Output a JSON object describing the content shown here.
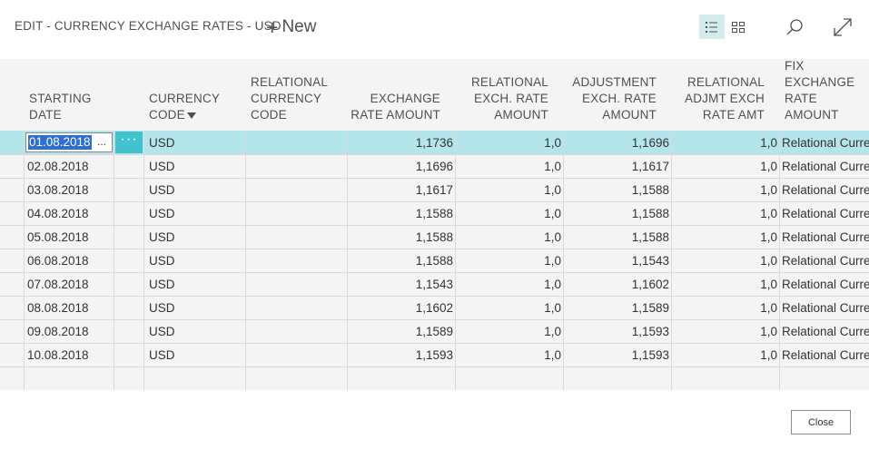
{
  "header": {
    "title": "EDIT - CURRENCY EXCHANGE RATES - USD",
    "new_label": "New",
    "icons": [
      "list-view-icon",
      "tile-view-icon",
      "search-icon",
      "expand-icon"
    ]
  },
  "columns": [
    {
      "key": "starting_date",
      "label": "STARTING DATE"
    },
    {
      "key": "currency_code",
      "label": "CURRENCY CODE",
      "filtered": true
    },
    {
      "key": "relational_currency_code",
      "label": "RELATIONAL CURRENCY CODE"
    },
    {
      "key": "exchange_rate_amount",
      "label": "EXCHANGE RATE AMOUNT"
    },
    {
      "key": "relational_exch_rate_amount",
      "label": "RELATIONAL EXCH. RATE AMOUNT"
    },
    {
      "key": "adjustment_exch_rate_amount",
      "label": "ADJUSTMENT EXCH. RATE AMOUNT"
    },
    {
      "key": "relational_adjmt_exch_rate_amt",
      "label": "RELATIONAL ADJMT EXCH RATE AMT"
    },
    {
      "key": "fix_exchange_rate_amount",
      "label": "FIX EXCHANGE RATE AMOUNT"
    }
  ],
  "header_lines": {
    "starting_date": [
      "STARTING",
      "DATE"
    ],
    "currency_code": [
      "CURRENCY",
      "CODE"
    ],
    "relational_currency_code": [
      "RELATIONAL",
      "CURRENCY",
      "CODE"
    ],
    "exchange_rate_amount": [
      "EXCHANGE",
      "RATE AMOUNT"
    ],
    "relational_exch_rate_amount": [
      "RELATIONAL",
      "EXCH. RATE",
      "AMOUNT"
    ],
    "adjustment_exch_rate_amount": [
      "ADJUSTMENT",
      "EXCH. RATE",
      "AMOUNT"
    ],
    "relational_adjmt_exch_rate_amt": [
      "RELATIONAL",
      "ADJMT EXCH",
      "RATE AMT"
    ],
    "fix_exchange_rate_amount": [
      "FIX",
      "EXCHANGE",
      "RATE",
      "AMOUNT"
    ]
  },
  "rows": [
    {
      "starting_date": "01.08.2018",
      "currency_code": "USD",
      "relational_currency_code": "",
      "exchange_rate_amount": "1,1736",
      "relational_exch_rate_amount": "1,0",
      "adjustment_exch_rate_amount": "1,1696",
      "relational_adjmt_exch_rate_amt": "1,0",
      "fix_exchange_rate_amount": "Relational Curre",
      "selected": true
    },
    {
      "starting_date": "02.08.2018",
      "currency_code": "USD",
      "relational_currency_code": "",
      "exchange_rate_amount": "1,1696",
      "relational_exch_rate_amount": "1,0",
      "adjustment_exch_rate_amount": "1,1617",
      "relational_adjmt_exch_rate_amt": "1,0",
      "fix_exchange_rate_amount": "Relational Curre"
    },
    {
      "starting_date": "03.08.2018",
      "currency_code": "USD",
      "relational_currency_code": "",
      "exchange_rate_amount": "1,1617",
      "relational_exch_rate_amount": "1,0",
      "adjustment_exch_rate_amount": "1,1588",
      "relational_adjmt_exch_rate_amt": "1,0",
      "fix_exchange_rate_amount": "Relational Curre"
    },
    {
      "starting_date": "04.08.2018",
      "currency_code": "USD",
      "relational_currency_code": "",
      "exchange_rate_amount": "1,1588",
      "relational_exch_rate_amount": "1,0",
      "adjustment_exch_rate_amount": "1,1588",
      "relational_adjmt_exch_rate_amt": "1,0",
      "fix_exchange_rate_amount": "Relational Curre"
    },
    {
      "starting_date": "05.08.2018",
      "currency_code": "USD",
      "relational_currency_code": "",
      "exchange_rate_amount": "1,1588",
      "relational_exch_rate_amount": "1,0",
      "adjustment_exch_rate_amount": "1,1588",
      "relational_adjmt_exch_rate_amt": "1,0",
      "fix_exchange_rate_amount": "Relational Curre"
    },
    {
      "starting_date": "06.08.2018",
      "currency_code": "USD",
      "relational_currency_code": "",
      "exchange_rate_amount": "1,1588",
      "relational_exch_rate_amount": "1,0",
      "adjustment_exch_rate_amount": "1,1543",
      "relational_adjmt_exch_rate_amt": "1,0",
      "fix_exchange_rate_amount": "Relational Curre"
    },
    {
      "starting_date": "07.08.2018",
      "currency_code": "USD",
      "relational_currency_code": "",
      "exchange_rate_amount": "1,1543",
      "relational_exch_rate_amount": "1,0",
      "adjustment_exch_rate_amount": "1,1602",
      "relational_adjmt_exch_rate_amt": "1,0",
      "fix_exchange_rate_amount": "Relational Curre"
    },
    {
      "starting_date": "08.08.2018",
      "currency_code": "USD",
      "relational_currency_code": "",
      "exchange_rate_amount": "1,1602",
      "relational_exch_rate_amount": "1,0",
      "adjustment_exch_rate_amount": "1,1589",
      "relational_adjmt_exch_rate_amt": "1,0",
      "fix_exchange_rate_amount": "Relational Curre"
    },
    {
      "starting_date": "09.08.2018",
      "currency_code": "USD",
      "relational_currency_code": "",
      "exchange_rate_amount": "1,1589",
      "relational_exch_rate_amount": "1,0",
      "adjustment_exch_rate_amount": "1,1593",
      "relational_adjmt_exch_rate_amt": "1,0",
      "fix_exchange_rate_amount": "Relational Curre"
    },
    {
      "starting_date": "10.08.2018",
      "currency_code": "USD",
      "relational_currency_code": "",
      "exchange_rate_amount": "1,1593",
      "relational_exch_rate_amount": "1,0",
      "adjustment_exch_rate_amount": "1,1593",
      "relational_adjmt_exch_rate_amt": "1,0",
      "fix_exchange_rate_amount": "Relational Curre"
    }
  ],
  "row_menu_label": "···",
  "date_lookup_label": "...",
  "footer": {
    "close_label": "Close"
  },
  "colors": {
    "selected_row": "#b3e5ea",
    "row_menu": "#40c3cf",
    "grid_bg": "#f4f4f4"
  }
}
